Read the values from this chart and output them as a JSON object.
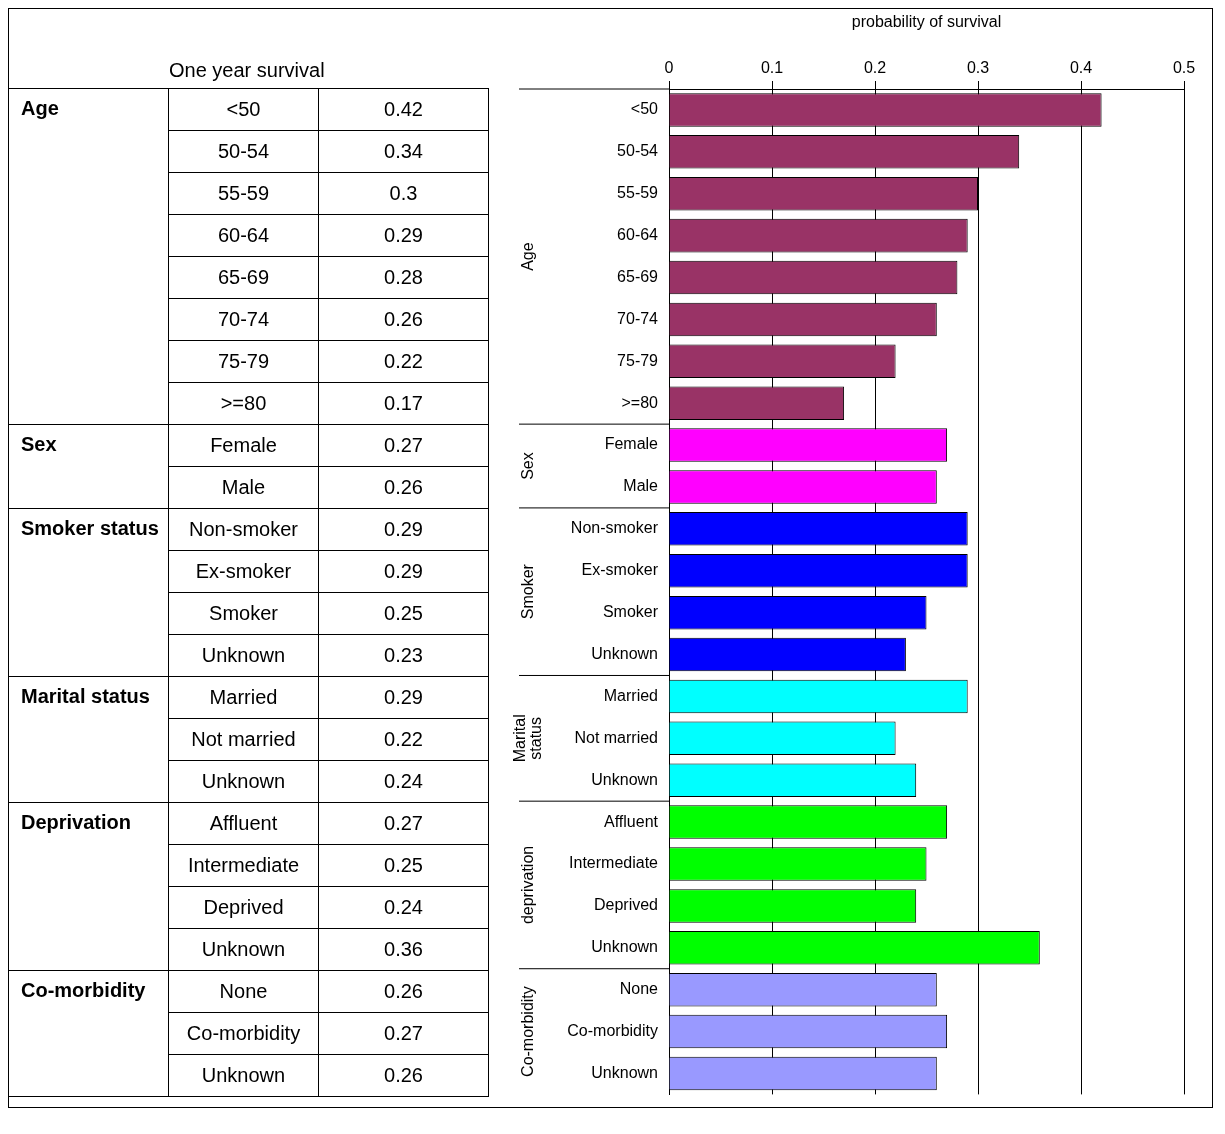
{
  "chart_data": {
    "type": "bar",
    "orientation": "horizontal",
    "title": "One year survival",
    "xlabel": "probability of survival",
    "categories": [
      "<50",
      "50-54",
      "55-59",
      "60-64",
      "65-69",
      "70-74",
      "75-79",
      ">=80",
      "Female",
      "Male",
      "Non-smoker",
      "Ex-smoker",
      "Smoker",
      "Unknown",
      "Married",
      "Not married",
      "Unknown",
      "Affluent",
      "Intermediate",
      "Deprived",
      "Unknown",
      "None",
      "Co-morbidity",
      "Unknown"
    ],
    "values": [
      0.42,
      0.34,
      0.3,
      0.29,
      0.28,
      0.26,
      0.22,
      0.17,
      0.27,
      0.26,
      0.29,
      0.29,
      0.25,
      0.23,
      0.29,
      0.22,
      0.24,
      0.27,
      0.25,
      0.24,
      0.36,
      0.26,
      0.27,
      0.26
    ],
    "colors": [
      "#993366",
      "#993366",
      "#993366",
      "#993366",
      "#993366",
      "#993366",
      "#993366",
      "#993366",
      "#ff00ff",
      "#ff00ff",
      "#0000ff",
      "#0000ff",
      "#0000ff",
      "#0000ff",
      "#00ffff",
      "#00ffff",
      "#00ffff",
      "#00ff00",
      "#00ff00",
      "#00ff00",
      "#00ff00",
      "#9999ff",
      "#9999ff",
      "#9999ff"
    ],
    "xlim": [
      0,
      0.5
    ],
    "xticks": [
      0,
      0.1,
      0.2,
      0.3,
      0.4,
      0.5
    ],
    "grid": "x",
    "legend": false,
    "data_labels": true,
    "annotations": [
      "Age",
      "Sex",
      "Smoker status",
      "Marital status",
      "Deprivation",
      "Co-morbidity",
      "Age",
      "Sex",
      "Smoker",
      "Marital status",
      "deprivation",
      "Co-morbidity"
    ]
  }
}
